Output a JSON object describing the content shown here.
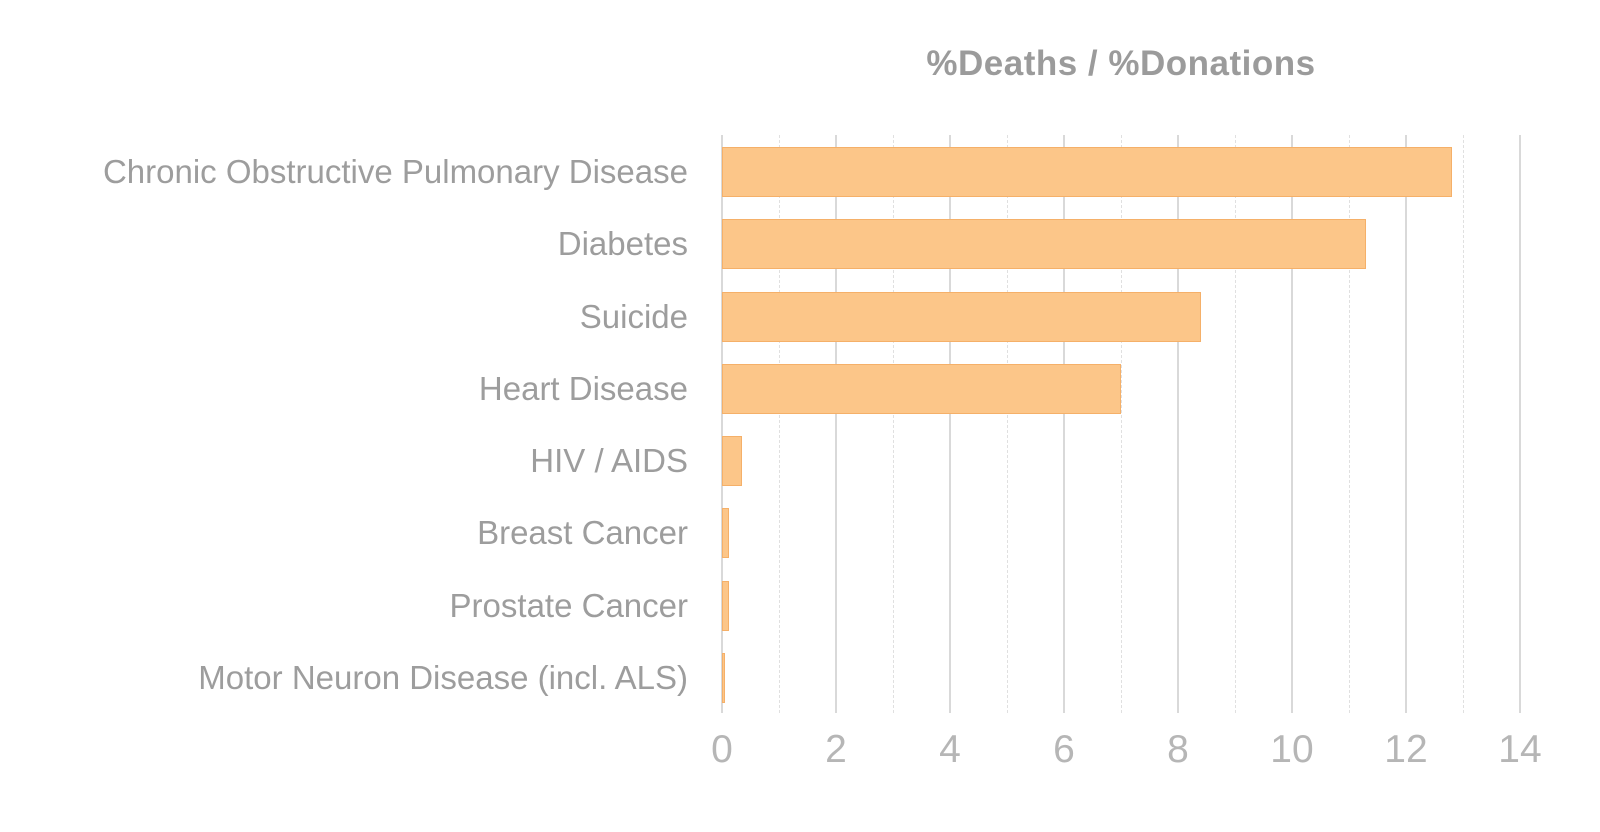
{
  "chart_data": {
    "type": "bar",
    "orientation": "horizontal",
    "title": "%Deaths / %Donations",
    "categories": [
      "Chronic Obstructive Pulmonary Disease",
      "Diabetes",
      "Suicide",
      "Heart Disease",
      "HIV / AIDS",
      "Breast Cancer",
      "Prostate Cancer",
      "Motor Neuron Disease (incl. ALS)"
    ],
    "values": [
      12.8,
      11.3,
      8.4,
      7.0,
      0.35,
      0.12,
      0.12,
      0.06
    ],
    "xlabel": "",
    "ylabel": "",
    "xlim": [
      0,
      14
    ],
    "x_major_ticks": [
      0,
      2,
      4,
      6,
      8,
      10,
      12,
      14
    ],
    "x_minor_gridlines": [
      1,
      3,
      5,
      7,
      9,
      11,
      13
    ],
    "grid": "vertical gridlines: solid at major ticks, dashed at minor ticks",
    "legend": "none",
    "colors": {
      "bar_fill": "#FCC689",
      "bar_border": "#ED9949",
      "title_text": "#9B9B9B",
      "category_text": "#9D9D9D",
      "tick_text": "#B6B6B6",
      "gridline_major": "#D9D9D9",
      "gridline_minor": "#E0E0E0",
      "background": "#FFFFFF"
    }
  }
}
